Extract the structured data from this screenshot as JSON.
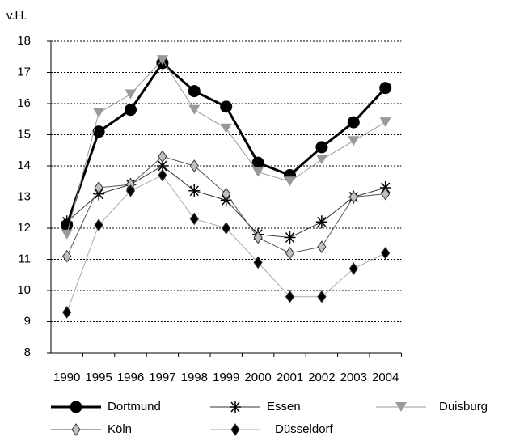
{
  "chart_data": {
    "type": "line",
    "y_label": "v.H.",
    "categories": [
      "1990",
      "1995",
      "1996",
      "1997",
      "1998",
      "1999",
      "2000",
      "2001",
      "2002",
      "2003",
      "2004"
    ],
    "series": [
      {
        "name": "Dortmund",
        "color": "#000000",
        "marker": "circle",
        "marker_color": "#000000",
        "line_width": 3,
        "values": [
          12.1,
          15.1,
          15.8,
          17.3,
          16.4,
          15.9,
          14.1,
          13.7,
          14.6,
          15.4,
          16.5
        ]
      },
      {
        "name": "Essen",
        "color": "#333333",
        "marker": "asterisk",
        "marker_color": "#000000",
        "line_width": 1,
        "values": [
          12.2,
          13.1,
          13.4,
          14.0,
          13.2,
          12.9,
          11.8,
          11.7,
          12.2,
          13.0,
          13.3
        ]
      },
      {
        "name": "Duisburg",
        "color": "#999999",
        "marker": "triangle-down",
        "marker_color": "#999999",
        "line_width": 1,
        "values": [
          11.8,
          15.7,
          16.3,
          17.4,
          15.8,
          15.2,
          13.8,
          13.5,
          14.2,
          14.8,
          15.4
        ]
      },
      {
        "name": "Köln",
        "color": "#555555",
        "marker": "diamond",
        "marker_color": "#c0c0c0",
        "line_width": 1,
        "values": [
          11.1,
          13.3,
          13.4,
          14.3,
          14.0,
          13.1,
          11.7,
          11.2,
          11.4,
          13.0,
          13.1
        ]
      },
      {
        "name": "Düsseldorf",
        "color": "#aaaaaa",
        "marker": "diamond",
        "marker_color": "#000000",
        "line_width": 1,
        "values": [
          9.3,
          12.1,
          13.2,
          13.7,
          12.3,
          12.0,
          10.9,
          9.8,
          9.8,
          10.7,
          11.2
        ]
      }
    ],
    "ylim": [
      8,
      18
    ],
    "yticks": [
      8,
      9,
      10,
      11,
      12,
      13,
      14,
      15,
      16,
      17,
      18
    ],
    "grid": true
  }
}
